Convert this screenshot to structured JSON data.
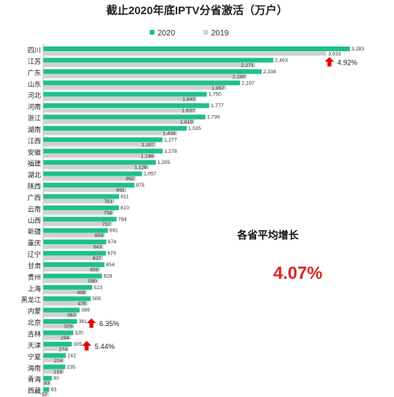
{
  "chart_data": {
    "type": "bar",
    "orientation": "horizontal",
    "title": "截止2020年底IPTV分省激活（万户）",
    "legend_position": "top",
    "categories": [
      "四川",
      "江苏",
      "广东",
      "山东",
      "河北",
      "河南",
      "浙江",
      "湖南",
      "江西",
      "安徽",
      "福建",
      "湖北",
      "陕西",
      "广西",
      "云南",
      "山西",
      "新疆",
      "重庆",
      "辽宁",
      "甘肃",
      "贵州",
      "上海",
      "黑龙江",
      "内蒙",
      "北京",
      "吉林",
      "天津",
      "宁夏",
      "海南",
      "青海",
      "西藏"
    ],
    "series": [
      {
        "name": "2020",
        "color": "#1ec08a",
        "values": [
          3283,
          2463,
          2338,
          2107,
          1750,
          1777,
          1736,
          1535,
          1277,
          1278,
          1205,
          1057,
          975,
          811,
          810,
          784,
          691,
          674,
          670,
          654,
          628,
          523,
          508,
          389,
          361,
          320,
          305,
          242,
          235,
          90,
          63
        ]
      },
      {
        "name": "2019",
        "color": "#d0d0d0",
        "values": [
          3033,
          2271,
          2180,
          1957,
          1643,
          1637,
          1619,
          1434,
          1207,
          1198,
          1128,
          992,
          891,
          761,
          756,
          737,
          659,
          643,
          637,
          608,
          590,
          468,
          476,
          363,
          329,
          294,
          274,
          224,
          219,
          83,
          57
        ]
      }
    ],
    "annotations": [
      {
        "category": "江苏",
        "text": "4.92%"
      },
      {
        "category": "北京",
        "text": "6.35%"
      },
      {
        "category": "天津",
        "text": "5.44%"
      }
    ],
    "summary_label": "各省平均增长",
    "summary_value": "4.07%",
    "xlim": [
      0,
      3400
    ],
    "grid": false
  }
}
